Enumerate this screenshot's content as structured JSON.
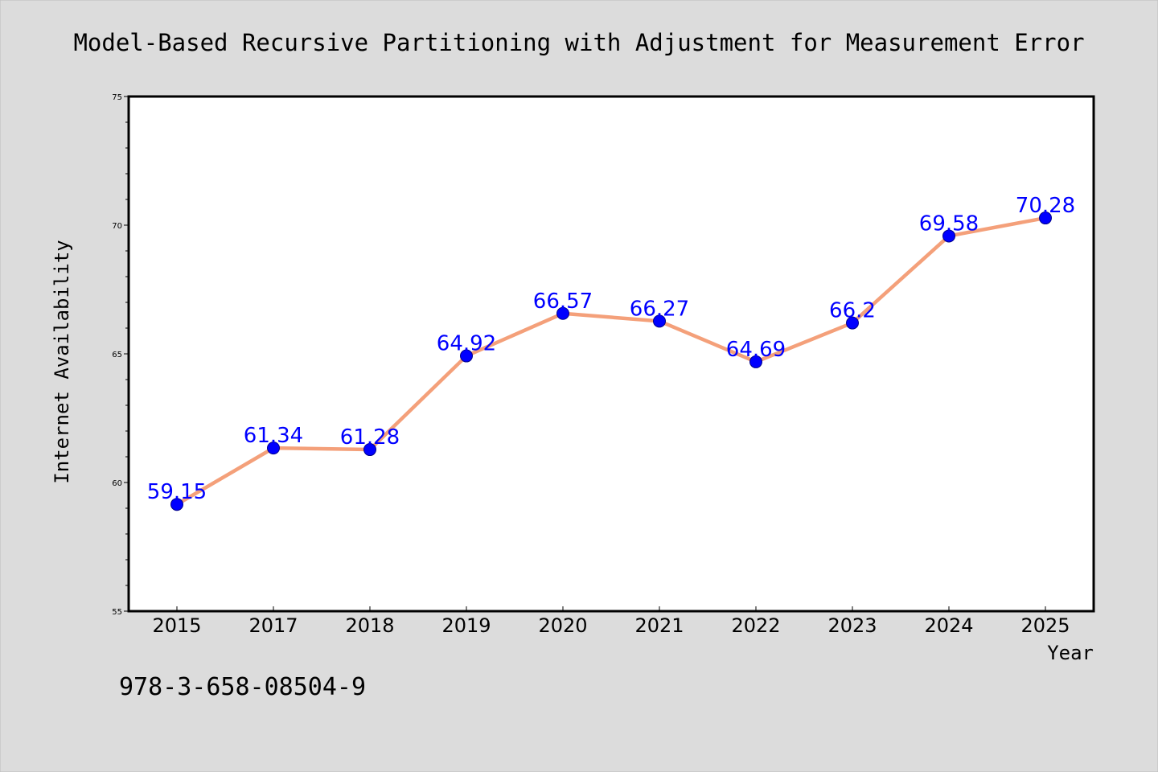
{
  "chart_data": {
    "type": "line",
    "title": "Model-Based Recursive Partitioning with Adjustment for Measurement Error",
    "xlabel": "Year",
    "ylabel": "Internet Availability",
    "categories": [
      "2015",
      "2017",
      "2018",
      "2019",
      "2020",
      "2021",
      "2022",
      "2023",
      "2024",
      "2025"
    ],
    "series": [
      {
        "values": [
          59.15,
          61.34,
          61.28,
          64.92,
          66.57,
          66.27,
          64.69,
          66.2,
          69.58,
          70.28
        ],
        "labels": [
          "59.15",
          "61.34",
          "61.28",
          "64.92",
          "66.57",
          "66.27",
          "64.69",
          "66.2",
          "69.58",
          "70.28"
        ]
      }
    ],
    "ylim": [
      55,
      75
    ],
    "yticks": [
      "55",
      "60",
      "65",
      "70",
      "75"
    ],
    "grid": false,
    "legend": "none",
    "line_color": "#f4a07a",
    "marker_color": "#0000ff",
    "label_color": "#0000ff",
    "background_color": "#dcdcdc",
    "plot_background_color": "#ffffff"
  },
  "footnote": "978-3-658-08504-9"
}
